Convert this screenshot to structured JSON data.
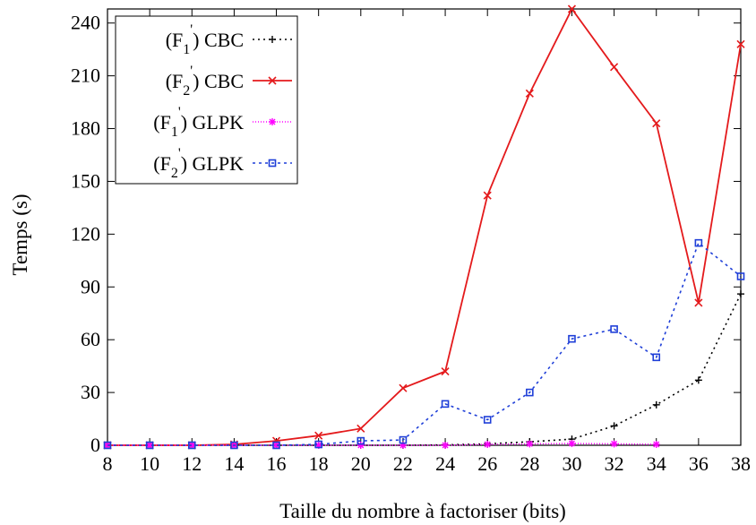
{
  "chart_data": {
    "type": "line",
    "xlabel": "Taille du nombre à factoriser (bits)",
    "ylabel": "Temps (s)",
    "xlim": [
      8,
      38
    ],
    "ylim": [
      0,
      248
    ],
    "x_ticks": [
      8,
      10,
      12,
      14,
      16,
      18,
      20,
      22,
      24,
      26,
      28,
      30,
      32,
      34,
      36,
      38
    ],
    "y_ticks": [
      0,
      30,
      60,
      90,
      120,
      150,
      180,
      210,
      240
    ],
    "grid": false,
    "legend_position": "top-left",
    "series": [
      {
        "name": "(F1') CBC",
        "label_base": "(F",
        "label_sub": "1",
        "label_sup": "'",
        "label_rest": ") CBC",
        "color": "#000000",
        "dash": "2,4",
        "marker": "plus",
        "x": [
          8,
          10,
          12,
          14,
          16,
          18,
          20,
          22,
          24,
          26,
          28,
          30,
          32,
          34,
          36,
          38
        ],
        "y": [
          0,
          0,
          0,
          0,
          0,
          0,
          0,
          0,
          0.2,
          0.8,
          2,
          3.5,
          11,
          23,
          37,
          86
        ]
      },
      {
        "name": "(F2') CBC",
        "label_base": "(F",
        "label_sub": "2",
        "label_sup": "'",
        "label_rest": ") CBC",
        "color": "#e41a1c",
        "dash": "",
        "marker": "x",
        "x": [
          8,
          10,
          12,
          14,
          16,
          18,
          20,
          22,
          24,
          26,
          28,
          30,
          32,
          34,
          36,
          38
        ],
        "y": [
          0,
          0,
          0,
          0.5,
          2.5,
          5.5,
          9.5,
          32.5,
          42,
          142,
          200,
          248,
          215,
          183,
          81,
          228
        ]
      },
      {
        "name": "(F1') GLPK",
        "label_base": "(F",
        "label_sub": "1",
        "label_sup": "'",
        "label_rest": ") GLPK",
        "color": "#ff00ff",
        "dash": "1,2",
        "marker": "star",
        "x": [
          8,
          10,
          12,
          14,
          16,
          18,
          20,
          22,
          24,
          26,
          28,
          30,
          32,
          34
        ],
        "y": [
          0,
          0,
          0,
          0,
          0,
          0,
          0,
          0,
          0,
          0.5,
          0.8,
          1,
          0.8,
          0.5
        ]
      },
      {
        "name": "(F2') GLPK",
        "label_base": "(F",
        "label_sub": "2",
        "label_sup": "'",
        "label_rest": ") GLPK",
        "color": "#1f3fd8",
        "dash": "3,4",
        "marker": "square",
        "x": [
          8,
          10,
          12,
          14,
          16,
          18,
          20,
          22,
          24,
          26,
          28,
          30,
          32,
          34,
          36,
          38
        ],
        "y": [
          0,
          0,
          0,
          0,
          0,
          0.5,
          2.5,
          3,
          23.5,
          14.5,
          30,
          60.5,
          66,
          50,
          115,
          96
        ]
      }
    ]
  }
}
